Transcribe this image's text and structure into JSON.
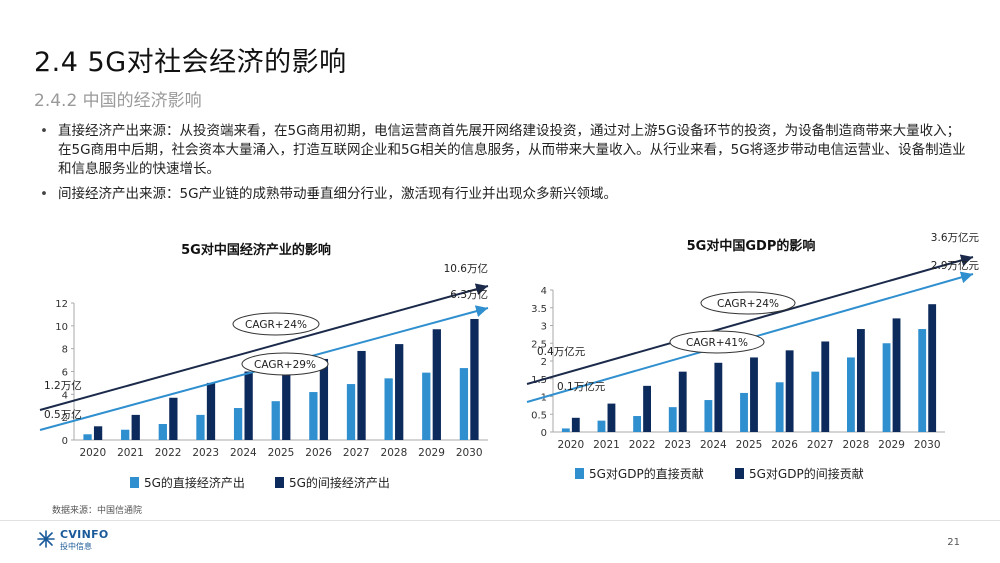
{
  "header": {
    "title": "2.4 5G对社会经济的影响",
    "subtitle": "2.4.2 中国的经济影响"
  },
  "bullets": [
    "直接经济产出来源：从投资端来看，在5G商用初期，电信运营商首先展开网络建设投资，通过对上游5G设备环节的投资，为设备制造商带来大量收入；在5G商用中后期，社会资本大量涌入，打造互联网企业和5G相关的信息服务，从而带来大量收入。从行业来看，5G将逐步带动电信运营业、设备制造业和信息服务业的快速增长。",
    "间接经济产出来源：5G产业链的成熟带动垂直细分行业，激活现有行业并出现众多新兴领域。"
  ],
  "footer": {
    "source": "数据来源：中国信通院",
    "logo_text": "CVINFO",
    "logo_sub": "投中信息",
    "page_number": "21"
  },
  "colors": {
    "direct": "#2f8fcf",
    "indirect": "#0d2a5c",
    "arrow_dark": "#1b2a4a",
    "arrow_light": "#2f8fcf"
  },
  "chart_data": [
    {
      "type": "bar",
      "title": "5G对中国经济产业的影响",
      "categories": [
        "2020",
        "2021",
        "2022",
        "2023",
        "2024",
        "2025",
        "2026",
        "2027",
        "2028",
        "2029",
        "2030"
      ],
      "series": [
        {
          "name": "5G的直接经济产出",
          "values": [
            0.5,
            0.9,
            1.4,
            2.2,
            2.8,
            3.4,
            4.2,
            4.9,
            5.4,
            5.9,
            6.3
          ]
        },
        {
          "name": "5G的间接经济产出",
          "values": [
            1.2,
            2.2,
            3.7,
            5.0,
            6.0,
            6.9,
            7.1,
            7.8,
            8.4,
            9.7,
            10.6
          ]
        }
      ],
      "ylim": [
        0,
        12
      ],
      "yticks": [
        0,
        2,
        4,
        6,
        8,
        10,
        12
      ],
      "annotations": [
        {
          "text": "1.2万亿"
        },
        {
          "text": "0.5万亿"
        },
        {
          "text": "10.6万亿"
        },
        {
          "text": "6.3万亿"
        },
        {
          "text": "CAGR+24%"
        },
        {
          "text": "CAGR+29%"
        }
      ],
      "legend_position": "bottom"
    },
    {
      "type": "bar",
      "title": "5G对中国GDP的影响",
      "categories": [
        "2020",
        "2021",
        "2022",
        "2023",
        "2024",
        "2025",
        "2026",
        "2027",
        "2028",
        "2029",
        "2030"
      ],
      "series": [
        {
          "name": "5G对GDP的直接贡献",
          "values": [
            0.1,
            0.32,
            0.45,
            0.7,
            0.9,
            1.1,
            1.4,
            1.7,
            2.1,
            2.5,
            2.9
          ]
        },
        {
          "name": "5G对GDP的间接贡献",
          "values": [
            0.4,
            0.8,
            1.3,
            1.7,
            1.95,
            2.1,
            2.3,
            2.55,
            2.9,
            3.2,
            3.6
          ]
        }
      ],
      "ylim": [
        0,
        4
      ],
      "yticks": [
        0,
        0.5,
        1,
        1.5,
        2,
        2.5,
        3,
        3.5,
        4
      ],
      "annotations": [
        {
          "text": "0.4万亿元"
        },
        {
          "text": "0.1万亿元"
        },
        {
          "text": "3.6万亿元"
        },
        {
          "text": "2.9万亿元"
        },
        {
          "text": "CAGR+24%"
        },
        {
          "text": "CAGR+41%"
        }
      ],
      "legend_position": "bottom"
    }
  ]
}
